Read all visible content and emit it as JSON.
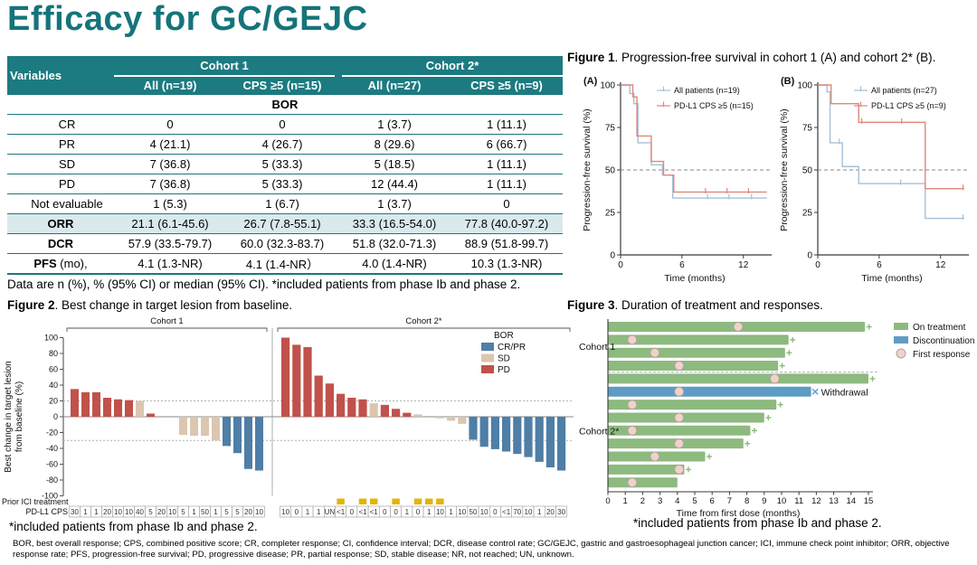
{
  "page_title": "Efficacy for GC/GEJC",
  "colors": {
    "accent_teal": "#1b7b81",
    "orr_highlight": "#d9e9ec",
    "km_all_patients": "#a5c0d8",
    "km_cps5": "#e0877a",
    "bor_crpr": "#4f7ea6",
    "bor_sd": "#dbc6b0",
    "bor_pd": "#c1514b",
    "prior_ici_yellow": "#e2b40c",
    "swimmer_green": "#8dba7f",
    "swimmer_blue": "#5f9cc5",
    "response_circle": "#edd4ca"
  },
  "table": {
    "variables_header": "Variables",
    "col_groups": [
      "Cohort 1",
      "Cohort 2*"
    ],
    "sub_headers": [
      "All (n=19)",
      "CPS ≥5 (n=15)",
      "All (n=27)",
      "CPS ≥5 (n=9)"
    ],
    "rows": [
      {
        "label": "BOR",
        "bold": true,
        "indent": false,
        "values": [
          "",
          "",
          "",
          ""
        ]
      },
      {
        "label": "CR",
        "bold": false,
        "indent": true,
        "values": [
          "0",
          "0",
          "1 (3.7)",
          "1 (11.1)"
        ]
      },
      {
        "label": "PR",
        "bold": false,
        "indent": true,
        "values": [
          "4 (21.1)",
          "4 (26.7)",
          "8 (29.6)",
          "6 (66.7)"
        ]
      },
      {
        "label": "SD",
        "bold": false,
        "indent": true,
        "values": [
          "7 (36.8)",
          "5 (33.3)",
          "5 (18.5)",
          "1 (11.1)"
        ]
      },
      {
        "label": "PD",
        "bold": false,
        "indent": true,
        "values": [
          "7 (36.8)",
          "5 (33.3)",
          "12 (44.4)",
          "1 (11.1)"
        ]
      },
      {
        "label": "Not evaluable",
        "bold": false,
        "indent": true,
        "values": [
          "1 (5.3)",
          "1 (6.7)",
          "1 (3.7)",
          "0"
        ]
      },
      {
        "label": "ORR",
        "bold": true,
        "highlight": true,
        "indent": false,
        "values": [
          "21.1 (6.1-45.6)",
          "26.7 (7.8-55.1)",
          "33.3 (16.5-54.0)",
          "77.8 (40.0-97.2)"
        ]
      },
      {
        "label": "DCR",
        "bold": true,
        "indent": false,
        "values": [
          "57.9 (33.5-79.7)",
          "60.0 (32.3-83.7)",
          "51.8 (32.0-71.3)",
          "88.9 (51.8-99.7)"
        ]
      },
      {
        "label": "PFS",
        "label_suffix": " (mo),",
        "bold": true,
        "indent": false,
        "values": [
          "4.1  (1.3-NR)",
          "4.1 (1.4-NR）",
          "4.0  (1.4-NR)",
          "10.3 (1.3-NR)"
        ]
      }
    ],
    "note": "Data are n (%), % (95% CI) or median (95% CI). *included patients from phase Ib and phase 2."
  },
  "figure1": {
    "label": "Figure 1",
    "title": ". Progression-free survival in cohort 1 (A) and cohort 2* (B)."
  },
  "figure2": {
    "label": "Figure 2",
    "title": ". Best change in target lesion from baseline.",
    "footnote": "*included patients from phase Ib and phase 2."
  },
  "figure3": {
    "label": "Figure 3",
    "title": ". Duration of treatment and responses.",
    "footnote": "*included patients from phase Ib and phase 2."
  },
  "footnotes": {
    "abbreviations": "BOR, best overall response; CPS, combined positive score; CR, completer response; CI, confidence interval; DCR, disease control rate; GC/GEJC, gastric and gastroesophageal junction cancer; ICI, immune check point inhibitor; ORR, objective response rate; PFS, progression-free survival; PD, progressive disease; PR, partial response; SD, stable disease; NR, not reached; UN, unknown."
  },
  "chart_data": [
    {
      "id": "km_cohort1",
      "type": "line",
      "panel_label": "(A)",
      "xlabel": "Time (months)",
      "ylabel": "Progression-free survival (%)",
      "xlim": [
        0,
        14.5
      ],
      "xticks": [
        0,
        6,
        12
      ],
      "ylim": [
        0,
        100
      ],
      "yticks": [
        0,
        25,
        50,
        75,
        100
      ],
      "dashed_y": 50,
      "xend": 14.3,
      "series": [
        {
          "name": "All patients (n=19)",
          "color": "#a5c0d8",
          "drops": [
            [
              0.9,
              95
            ],
            [
              1.3,
              89
            ],
            [
              1.7,
              66
            ],
            [
              3.0,
              53
            ],
            [
              4.1,
              47
            ],
            [
              5.1,
              33.5
            ]
          ],
          "censors": [
            [
              8.5,
              33.5
            ],
            [
              10.6,
              33.5
            ],
            [
              12.8,
              33.5
            ]
          ]
        },
        {
          "name": "PD-L1 CPS ≥5 (n=15)",
          "color": "#e0877a",
          "drops": [
            [
              1.2,
              93
            ],
            [
              1.6,
              70
            ],
            [
              3.0,
              55
            ],
            [
              4.2,
              47
            ],
            [
              5.2,
              37
            ]
          ],
          "censors": [
            [
              8.3,
              37
            ],
            [
              10.4,
              37
            ],
            [
              12.5,
              37
            ]
          ]
        }
      ]
    },
    {
      "id": "km_cohort2",
      "type": "line",
      "panel_label": "(B)",
      "xlabel": "Time (months)",
      "ylabel": "Progression-free survival (%)",
      "xlim": [
        0,
        14.5
      ],
      "xticks": [
        0,
        6,
        12
      ],
      "ylim": [
        0,
        100
      ],
      "yticks": [
        0,
        25,
        50,
        75,
        100
      ],
      "dashed_y": 50,
      "xend": 14.3,
      "series": [
        {
          "name": "All patients (n=27)",
          "color": "#a5c0d8",
          "drops": [
            [
              0.9,
              96
            ],
            [
              1.2,
              66
            ],
            [
              2.4,
              52
            ],
            [
              4.0,
              42
            ],
            [
              10.5,
              21.5
            ]
          ],
          "censors": [
            [
              2.1,
              66
            ],
            [
              8.1,
              42
            ],
            [
              14.2,
              21.5
            ]
          ]
        },
        {
          "name": "PD-L1 CPS ≥5 (n=9)",
          "color": "#e0877a",
          "drops": [
            [
              1.3,
              89
            ],
            [
              4.0,
              78
            ],
            [
              10.5,
              39
            ]
          ],
          "censors": [
            [
              4.3,
              78
            ],
            [
              8.2,
              78
            ],
            [
              14.2,
              39
            ]
          ]
        }
      ]
    },
    {
      "id": "waterfall",
      "type": "bar",
      "ylabel_lines": [
        "Best change in target lesion",
        "from baseline (%)"
      ],
      "ylim": [
        -100,
        100
      ],
      "ytick_step": 20,
      "reference_lines": [
        20,
        -30
      ],
      "legend_title": "BOR",
      "legend": [
        {
          "label": "CR/PR",
          "color": "#4f7ea6"
        },
        {
          "label": "SD",
          "color": "#dbc6b0"
        },
        {
          "label": "PD",
          "color": "#c1514b"
        }
      ],
      "row_labels": {
        "prior_ici": "Prior ICI treatment",
        "cps": "PD-L1 CPS"
      },
      "prior_ici_color": "#e2b40c",
      "groups": [
        {
          "label": "Cohort 1",
          "values": [
            35,
            31,
            31,
            24,
            22,
            21,
            20,
            4,
            0,
            0,
            -23,
            -24,
            -24,
            -30,
            -37,
            -46,
            -66,
            -68
          ],
          "bor": [
            "PD",
            "PD",
            "PD",
            "PD",
            "PD",
            "PD",
            "SD",
            "PD",
            "SD",
            "SD",
            "SD",
            "SD",
            "SD",
            "SD",
            "CR/PR",
            "CR/PR",
            "CR/PR",
            "CR/PR"
          ],
          "cps": [
            "30",
            "1",
            "1",
            "20",
            "10",
            "10",
            "40",
            "5",
            "20",
            "10",
            "5",
            "1",
            "50",
            "1",
            "5",
            "5",
            "20",
            "10"
          ],
          "prior_ici": []
        },
        {
          "label": "Cohort 2*",
          "values": [
            100,
            91,
            88,
            52,
            42,
            29,
            24,
            22,
            17,
            15,
            10,
            5,
            3,
            0,
            -2,
            -5,
            -9,
            -29,
            -38,
            -41,
            -44,
            -47,
            -51,
            -57,
            -64,
            -68
          ],
          "bor": [
            "PD",
            "PD",
            "PD",
            "PD",
            "PD",
            "PD",
            "PD",
            "PD",
            "SD",
            "PD",
            "PD",
            "PD",
            "SD",
            "PD",
            "SD",
            "SD",
            "SD",
            "CR/PR",
            "CR/PR",
            "CR/PR",
            "CR/PR",
            "CR/PR",
            "CR/PR",
            "CR/PR",
            "CR/PR",
            "CR/PR"
          ],
          "cps": [
            "10",
            "0",
            "1",
            "1",
            "UN",
            "<1",
            "0",
            "<1",
            "<1",
            "0",
            "0",
            "1",
            "0",
            "1",
            "10",
            "1",
            "10",
            "50",
            "10",
            "0",
            "<1",
            "70",
            "10",
            "1",
            "20",
            "30"
          ],
          "prior_ici": [
            5,
            7,
            8,
            10,
            12,
            13,
            14
          ]
        }
      ]
    },
    {
      "id": "swimmer",
      "type": "bar",
      "xlabel": "Time from first dose (months)",
      "xlim": [
        0,
        15
      ],
      "xtick_step": 1,
      "legend": [
        {
          "label": "On treatment",
          "color": "#8dba7f",
          "shape": "rect"
        },
        {
          "label": "Discontinuation",
          "color": "#5f9cc5",
          "shape": "rect"
        },
        {
          "label": "First response",
          "color": "#edd4ca",
          "shape": "circle"
        }
      ],
      "withdrawal_label": "Withdrawal",
      "groups": [
        {
          "label": "Cohort 1",
          "bars": [
            {
              "duration": 14.8,
              "first_response": 7.5,
              "status": "on_treatment",
              "ongoing": true
            },
            {
              "duration": 10.4,
              "first_response": 1.4,
              "status": "on_treatment",
              "ongoing": true
            },
            {
              "duration": 10.2,
              "first_response": 2.7,
              "status": "on_treatment",
              "ongoing": true
            },
            {
              "duration": 9.8,
              "first_response": 4.1,
              "status": "on_treatment",
              "ongoing": true
            }
          ]
        },
        {
          "label": "Cohort 2*",
          "bars": [
            {
              "duration": 15.0,
              "first_response": 9.6,
              "status": "on_treatment",
              "ongoing": true
            },
            {
              "duration": 11.7,
              "first_response": 4.1,
              "status": "discontinuation",
              "ongoing": false,
              "end_label": "Withdrawal"
            },
            {
              "duration": 9.7,
              "first_response": 1.4,
              "status": "on_treatment",
              "ongoing": true
            },
            {
              "duration": 9.0,
              "first_response": 4.1,
              "status": "on_treatment",
              "ongoing": true
            },
            {
              "duration": 8.2,
              "first_response": 1.4,
              "status": "on_treatment",
              "ongoing": true
            },
            {
              "duration": 7.8,
              "first_response": 4.1,
              "status": "on_treatment",
              "ongoing": true
            },
            {
              "duration": 5.6,
              "first_response": 2.7,
              "status": "on_treatment",
              "ongoing": true
            },
            {
              "duration": 4.4,
              "first_response": 4.1,
              "status": "on_treatment",
              "ongoing": true
            },
            {
              "duration": 4.0,
              "first_response": 1.4,
              "status": "on_treatment",
              "ongoing": false
            }
          ]
        }
      ]
    }
  ]
}
